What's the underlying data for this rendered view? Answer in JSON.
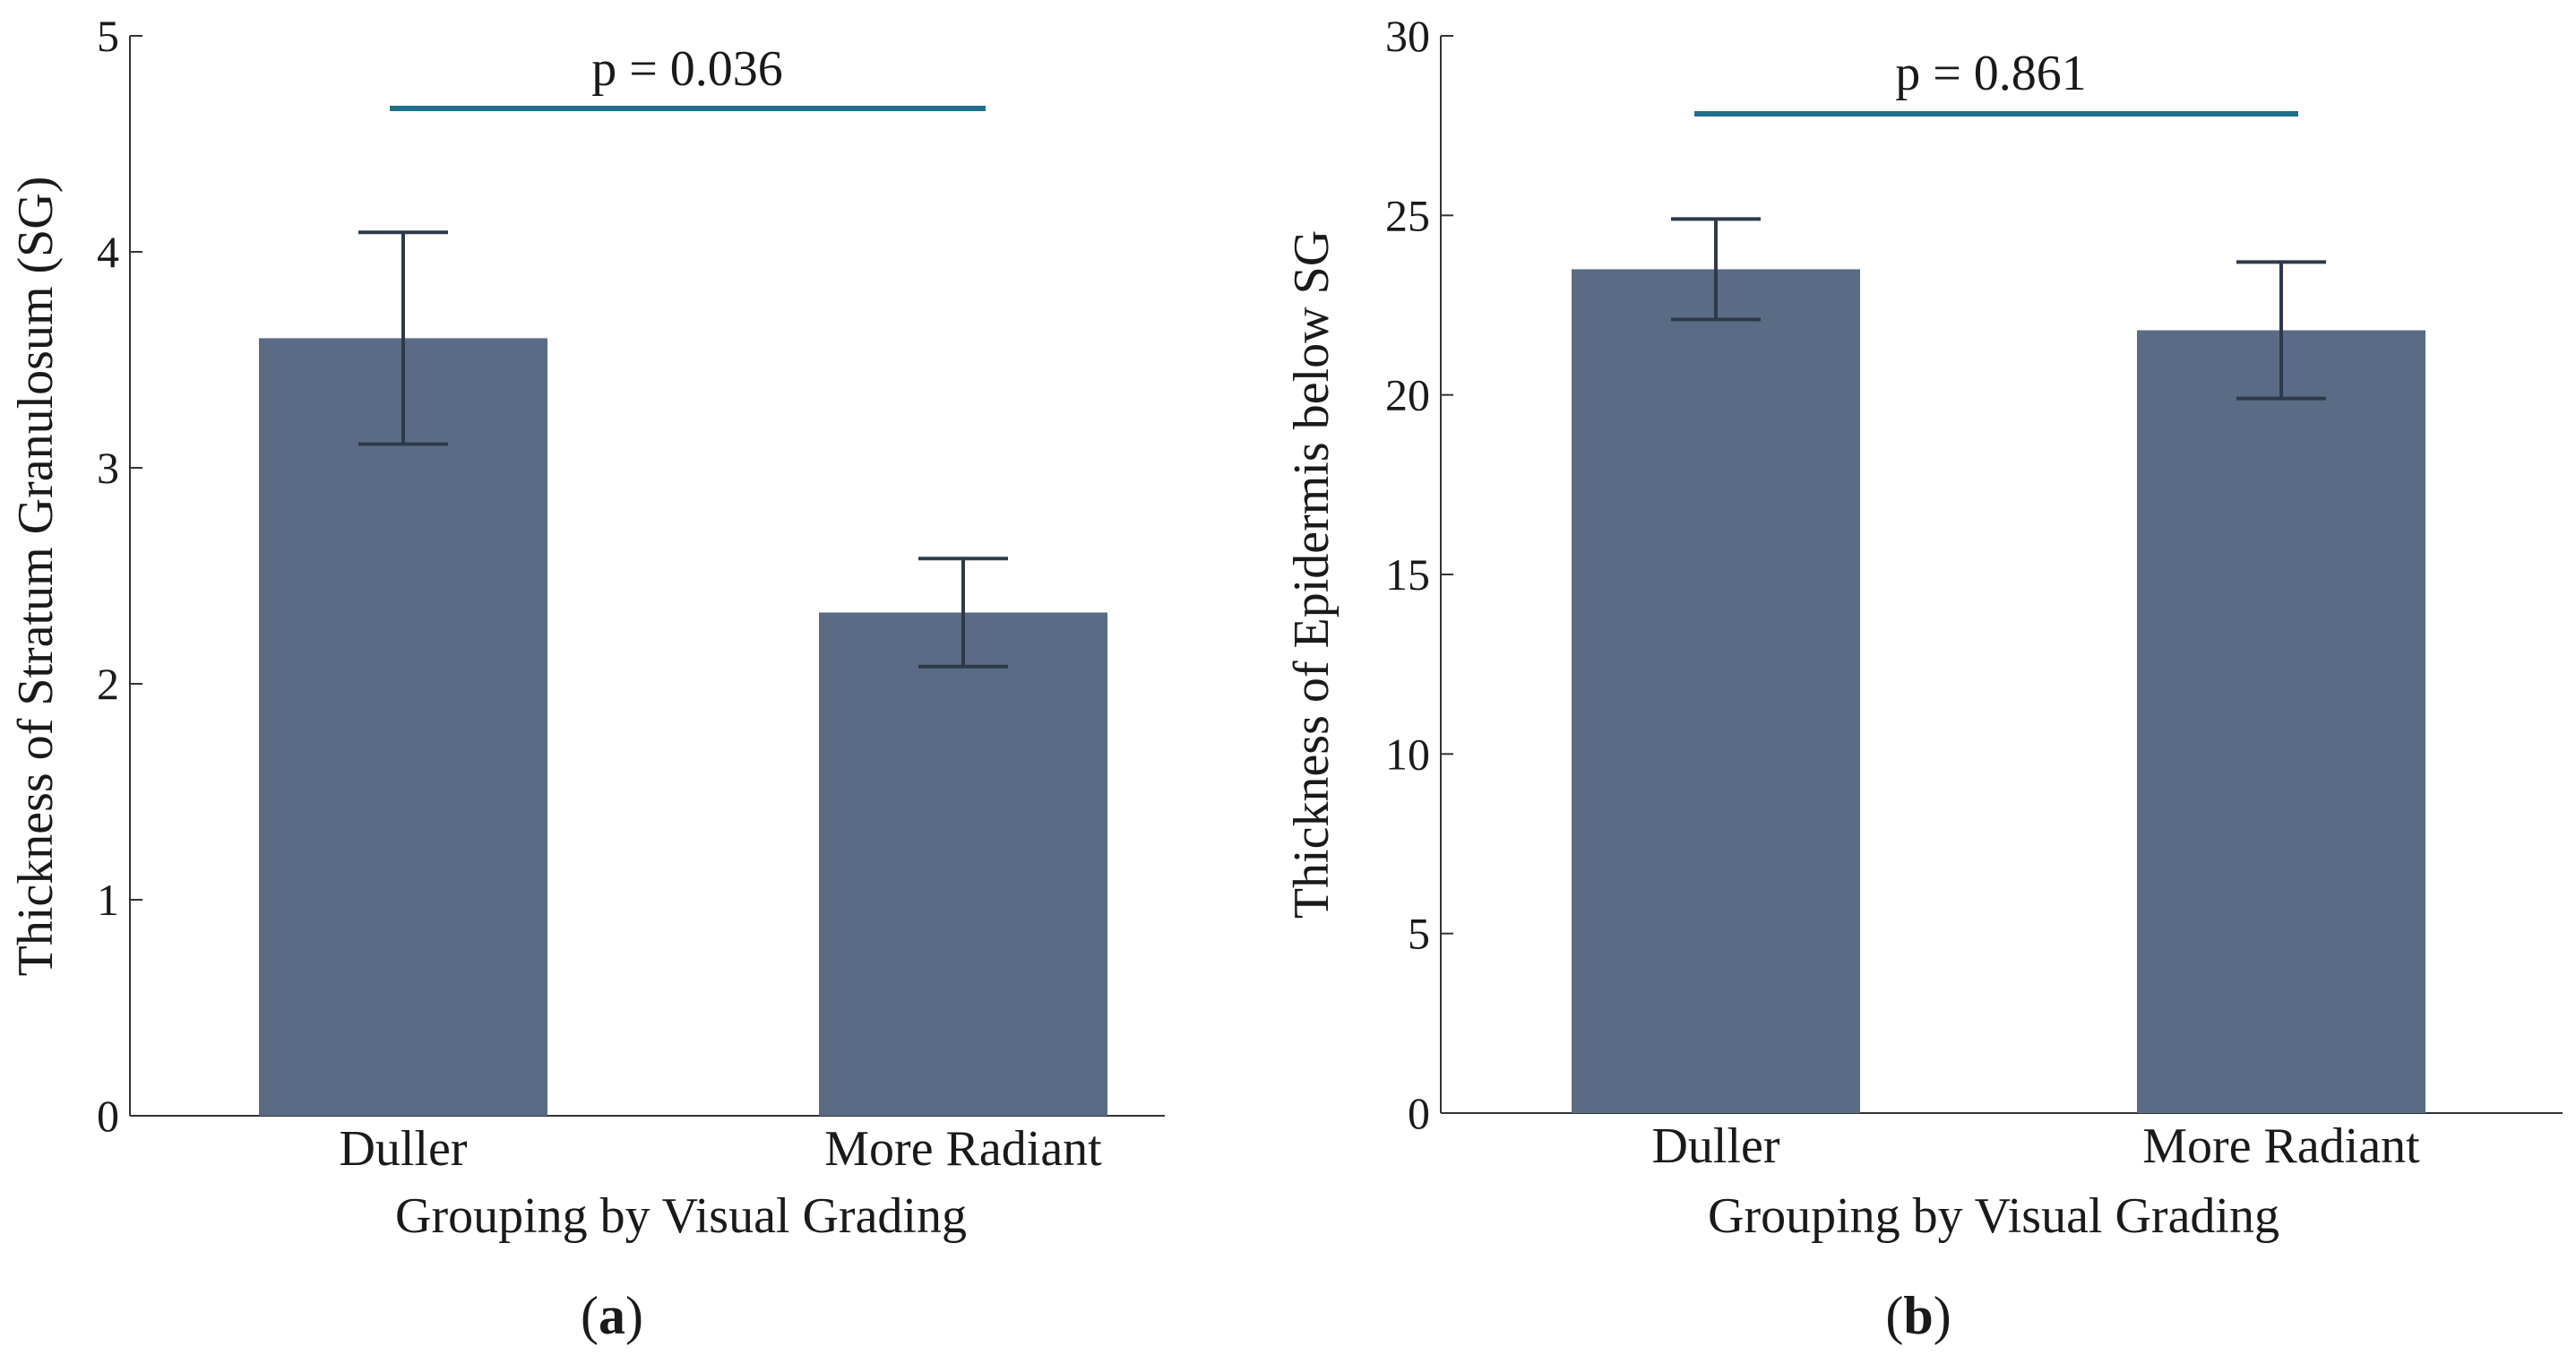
{
  "colors": {
    "bar": "#5a6c85",
    "error_bar": "#2e3a4a",
    "significance_line": "#1f6e8c",
    "axis": "#333333"
  },
  "chart_data": [
    {
      "type": "bar",
      "panel": "(a)",
      "panel_letter": "a",
      "title": "",
      "categories": [
        "Duller",
        "More Radiant"
      ],
      "values": [
        3.6,
        2.33
      ],
      "errors": [
        0.49,
        0.25
      ],
      "xlabel": "Grouping by Visual Grading",
      "ylabel": "Thickness of Stratum Granulosum (SG)",
      "ylim": [
        0,
        5
      ],
      "yticks": [
        0,
        1,
        2,
        3,
        4,
        5
      ],
      "significance": {
        "text": "p = 0.036"
      },
      "grid": false
    },
    {
      "type": "bar",
      "panel": "(b)",
      "panel_letter": "b",
      "title": "",
      "categories": [
        "Duller",
        "More Radiant"
      ],
      "values": [
        23.5,
        21.8
      ],
      "errors": [
        1.4,
        1.9
      ],
      "xlabel": "Grouping by Visual Grading",
      "ylabel": "Thickness of Epidermis below SG",
      "ylim": [
        0,
        30
      ],
      "yticks": [
        0,
        5,
        10,
        15,
        20,
        25,
        30
      ],
      "significance": {
        "text": "p = 0.861"
      },
      "grid": false
    }
  ]
}
